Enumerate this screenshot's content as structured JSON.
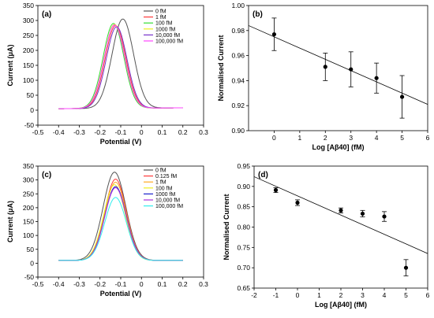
{
  "chart_data": [
    {
      "panel_label": "(a)",
      "type": "line",
      "xlabel": "Potential (V)",
      "ylabel": "Current (μA)",
      "xlim": [
        -0.5,
        0.3
      ],
      "ylim": [
        -50,
        350
      ],
      "xticks": [
        -0.5,
        -0.4,
        -0.3,
        -0.2,
        -0.1,
        0,
        0.1,
        0.2,
        0.3
      ],
      "yticks": [
        -50,
        0,
        50,
        100,
        150,
        200,
        250,
        300,
        350
      ],
      "legend_position": "top-right",
      "baseline": {
        "start": 5,
        "end": 8
      },
      "series": [
        {
          "name": "0 fM",
          "color": "#555555",
          "peak_x": -0.09,
          "peak_y": 305,
          "width": 0.052
        },
        {
          "name": "1 fM",
          "color": "#ff3b3b",
          "peak_x": -0.125,
          "peak_y": 283,
          "width": 0.05
        },
        {
          "name": "100 fM",
          "color": "#33dd33",
          "peak_x": -0.135,
          "peak_y": 290,
          "width": 0.05
        },
        {
          "name": "1000 fM",
          "color": "#eeee22",
          "peak_x": -0.13,
          "peak_y": 287,
          "width": 0.05
        },
        {
          "name": "10,000 fM",
          "color": "#7733cc",
          "peak_x": -0.12,
          "peak_y": 279,
          "width": 0.05
        },
        {
          "name": "100,000 fM",
          "color": "#ff44ff",
          "peak_x": -0.13,
          "peak_y": 285,
          "width": 0.05
        }
      ]
    },
    {
      "panel_label": "(b)",
      "type": "scatter",
      "xlabel": "Log [Aβ40] (fM)",
      "ylabel": "Normalised Current",
      "xlim": [
        -1,
        6
      ],
      "ylim": [
        0.9,
        1.0
      ],
      "xticks": [
        0,
        1,
        2,
        3,
        4,
        5,
        6
      ],
      "yticks": [
        0.9,
        0.92,
        0.94,
        0.96,
        0.98,
        1.0
      ],
      "ytick_decimals": 2,
      "x": [
        0,
        2,
        3,
        4,
        5
      ],
      "y": [
        0.977,
        0.951,
        0.949,
        0.942,
        0.927
      ],
      "yerr": [
        0.013,
        0.011,
        0.014,
        0.012,
        0.017
      ],
      "trendline": {
        "x": [
          -1,
          6
        ],
        "y": [
          0.984,
          0.921
        ]
      }
    },
    {
      "panel_label": "(c)",
      "type": "line",
      "xlabel": "Potential (V)",
      "ylabel": "Current (μA)",
      "xlim": [
        -0.5,
        0.3
      ],
      "ylim": [
        -50,
        350
      ],
      "xticks": [
        -0.5,
        -0.4,
        -0.3,
        -0.2,
        -0.1,
        0,
        0.1,
        0.2,
        0.3
      ],
      "yticks": [
        -50,
        0,
        50,
        100,
        150,
        200,
        250,
        300,
        350
      ],
      "legend_position": "top-right",
      "baseline": {
        "start": 10,
        "end": 10
      },
      "series": [
        {
          "name": "0 fM",
          "color": "#555555",
          "peak_x": -0.13,
          "peak_y": 328,
          "width": 0.055
        },
        {
          "name": "0.125 fM",
          "color": "#ff3b3b",
          "peak_x": -0.125,
          "peak_y": 303,
          "width": 0.052
        },
        {
          "name": "1 fM",
          "color": "#ffaa22",
          "peak_x": -0.125,
          "peak_y": 292,
          "width": 0.052
        },
        {
          "name": "100 fM",
          "color": "#eeee22",
          "peak_x": -0.13,
          "peak_y": 283,
          "width": 0.052
        },
        {
          "name": "1000 fM",
          "color": "#1a22cc",
          "peak_x": -0.125,
          "peak_y": 276,
          "width": 0.052
        },
        {
          "name": "10,000 fM",
          "color": "#aa33dd",
          "peak_x": -0.125,
          "peak_y": 272,
          "width": 0.052
        },
        {
          "name": "100,000 fM",
          "color": "#33eeee",
          "peak_x": -0.125,
          "peak_y": 237,
          "width": 0.052
        }
      ]
    },
    {
      "panel_label": "(d)",
      "type": "scatter",
      "xlabel": "Log [Aβ40] (fM)",
      "ylabel": "Normalised Current",
      "xlim": [
        -2,
        6
      ],
      "ylim": [
        0.65,
        0.95
      ],
      "xticks": [
        -2,
        -1,
        0,
        1,
        2,
        3,
        4,
        5,
        6
      ],
      "yticks": [
        0.65,
        0.7,
        0.75,
        0.8,
        0.85,
        0.9,
        0.95
      ],
      "ytick_decimals": 2,
      "x": [
        -1,
        0,
        2,
        3,
        4,
        5
      ],
      "y": [
        0.891,
        0.86,
        0.841,
        0.833,
        0.826,
        0.7
      ],
      "yerr": [
        0.006,
        0.007,
        0.006,
        0.008,
        0.012,
        0.02
      ],
      "trendline": {
        "x": [
          -2,
          6
        ],
        "y": [
          0.924,
          0.735
        ]
      }
    }
  ]
}
